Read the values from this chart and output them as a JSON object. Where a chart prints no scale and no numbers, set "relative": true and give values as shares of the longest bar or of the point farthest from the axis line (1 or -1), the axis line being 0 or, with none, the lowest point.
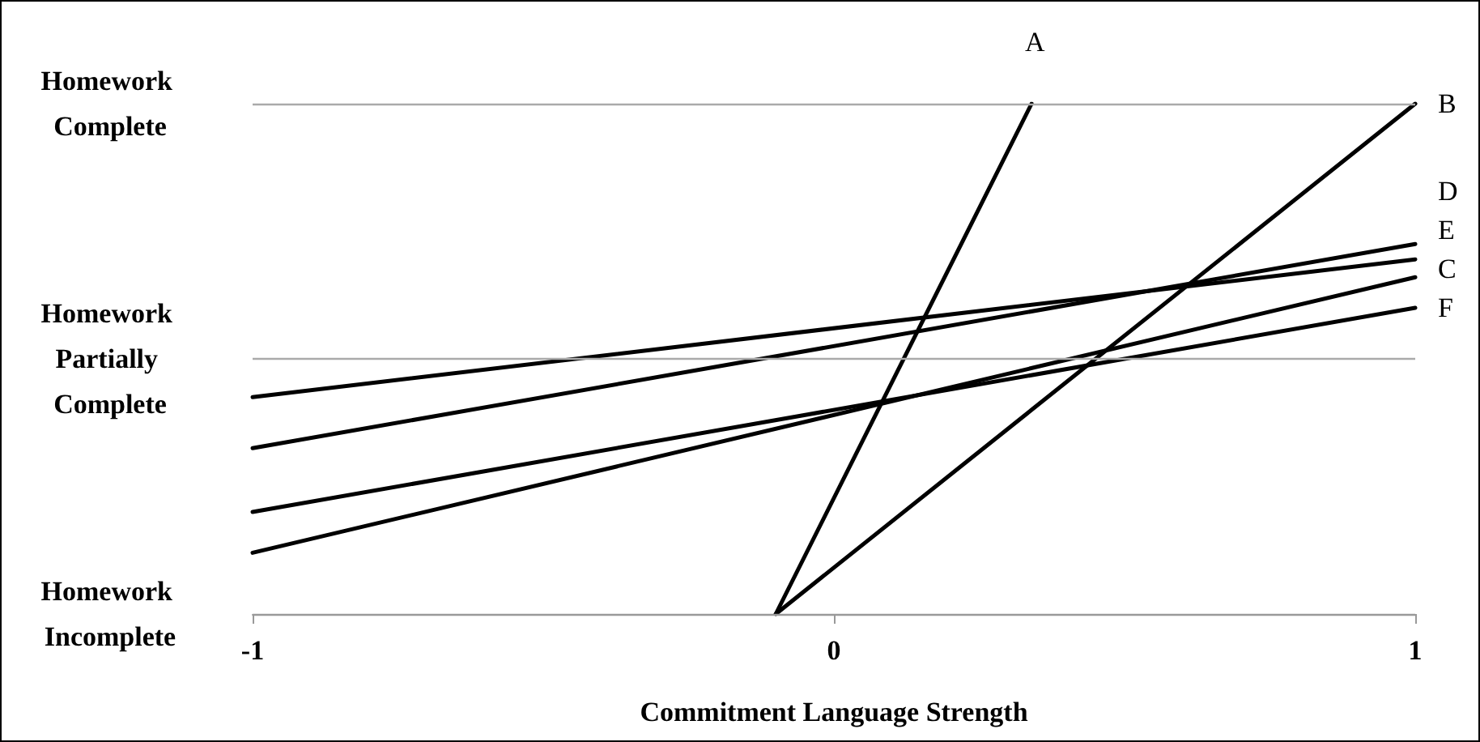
{
  "chart_data": {
    "type": "line",
    "xlabel": "Commitment Language Strength",
    "xlim": [
      -1,
      1
    ],
    "xticks": [
      -1,
      0,
      1
    ],
    "relative": true,
    "ref_lines": [
      {
        "axis": "y",
        "value": 0,
        "label": "Homework Incomplete",
        "color": "#999999"
      },
      {
        "axis": "y",
        "value": 0.5,
        "label": "Homework Partially Complete",
        "color": "#aaaaaa"
      },
      {
        "axis": "y",
        "value": 1,
        "label": "Homework Complete",
        "color": "#aaaaaa"
      }
    ],
    "marker": "none",
    "line_style": "solid",
    "legend": false,
    "series": [
      {
        "name": "A",
        "color": "#000000",
        "x": [
          -0.1,
          0.34
        ],
        "values": [
          0,
          1
        ]
      },
      {
        "name": "B",
        "color": "#000000",
        "x": [
          -0.1,
          1
        ],
        "values": [
          0,
          1
        ]
      },
      {
        "name": "D",
        "color": "#000000",
        "x": [
          -1,
          1
        ],
        "values": [
          0.325,
          0.725
        ]
      },
      {
        "name": "E",
        "color": "#000000",
        "x": [
          -1,
          1
        ],
        "values": [
          0.425,
          0.695
        ]
      },
      {
        "name": "C",
        "color": "#000000",
        "x": [
          -1,
          1
        ],
        "values": [
          0.12,
          0.66
        ]
      },
      {
        "name": "F",
        "color": "#000000",
        "x": [
          -1,
          1
        ],
        "values": [
          0.2,
          0.6
        ]
      }
    ]
  }
}
